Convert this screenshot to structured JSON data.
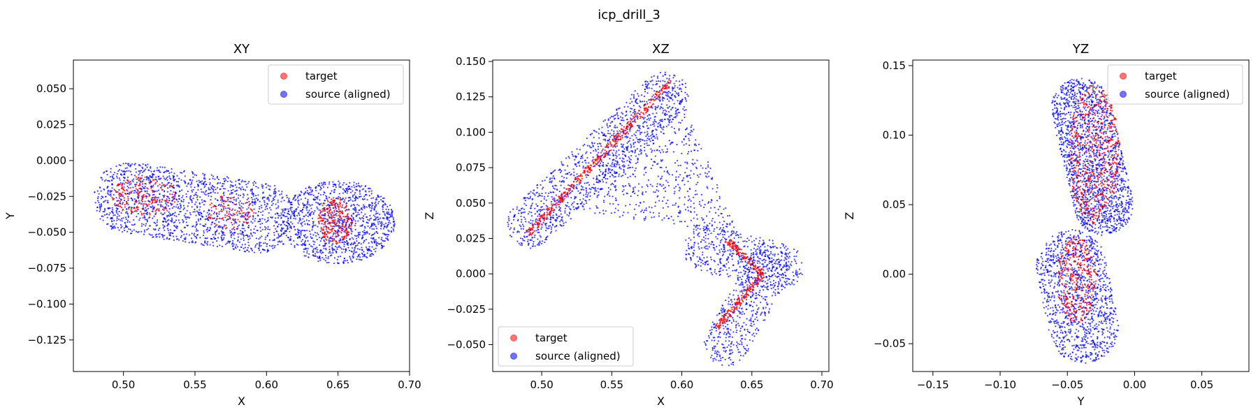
{
  "figure": {
    "title": "icp_drill_3"
  },
  "chart_data": [
    {
      "type": "scatter",
      "title": "XY",
      "xlabel": "X",
      "ylabel": "Y",
      "xlim": [
        0.465,
        0.7
      ],
      "ylim": [
        -0.147,
        0.07
      ],
      "x_ticks": [
        0.5,
        0.55,
        0.6,
        0.65,
        0.7
      ],
      "x_tick_labels": [
        "0.50",
        "0.55",
        "0.60",
        "0.65",
        "0.70"
      ],
      "y_ticks": [
        -0.125,
        -0.1,
        -0.075,
        -0.05,
        -0.025,
        0.0,
        0.025,
        0.05
      ],
      "y_tick_labels": [
        "−0.125",
        "−0.100",
        "−0.075",
        "−0.050",
        "−0.025",
        "0.000",
        "0.025",
        "0.050"
      ],
      "grid": false,
      "legend": {
        "placement": "top-right",
        "entries": [
          "target",
          "source (aligned)"
        ]
      },
      "series": [
        {
          "name": "target",
          "color": "#ff0000",
          "regions": [
            {
              "shape": "ellipse",
              "cx": 0.515,
              "cy": -0.025,
              "rx": 0.024,
              "ry": 0.014,
              "count": 180
            },
            {
              "shape": "ellipse",
              "cx": 0.575,
              "cy": -0.036,
              "rx": 0.018,
              "ry": 0.012,
              "count": 90
            },
            {
              "shape": "ellipse",
              "cx": 0.648,
              "cy": -0.042,
              "rx": 0.012,
              "ry": 0.016,
              "count": 220
            }
          ]
        },
        {
          "name": "source (aligned)",
          "color": "#0000ff",
          "regions": [
            {
              "shape": "capsule",
              "x1": 0.504,
              "y1": -0.026,
              "x2": 0.595,
              "y2": -0.04,
              "r": 0.025,
              "count": 1650
            },
            {
              "shape": "ellipse",
              "cx": 0.65,
              "cy": -0.043,
              "rx": 0.04,
              "ry": 0.029,
              "count": 1150
            }
          ]
        }
      ]
    },
    {
      "type": "scatter",
      "title": "XZ",
      "xlabel": "X",
      "ylabel": "Z",
      "xlim": [
        0.465,
        0.705
      ],
      "ylim": [
        -0.069,
        0.151
      ],
      "x_ticks": [
        0.5,
        0.55,
        0.6,
        0.65,
        0.7
      ],
      "x_tick_labels": [
        "0.50",
        "0.55",
        "0.60",
        "0.65",
        "0.70"
      ],
      "y_ticks": [
        -0.05,
        -0.025,
        0.0,
        0.025,
        0.05,
        0.075,
        0.1,
        0.125,
        0.15
      ],
      "y_tick_labels": [
        "−0.050",
        "−0.025",
        "0.000",
        "0.025",
        "0.050",
        "0.075",
        "0.100",
        "0.125",
        "0.150"
      ],
      "grid": false,
      "legend": {
        "placement": "lower-left",
        "entries": [
          "target",
          "source (aligned)"
        ]
      },
      "series": [
        {
          "name": "target",
          "color": "#ff0000",
          "regions": [
            {
              "shape": "line",
              "x1": 0.49,
              "y1": 0.028,
              "x2": 0.592,
              "y2": 0.136,
              "spread": 0.0025,
              "count": 420
            },
            {
              "shape": "line",
              "x1": 0.632,
              "y1": 0.024,
              "x2": 0.658,
              "y2": 0.0,
              "spread": 0.0022,
              "count": 120
            },
            {
              "shape": "line",
              "x1": 0.658,
              "y1": 0.0,
              "x2": 0.625,
              "y2": -0.038,
              "spread": 0.0022,
              "count": 160
            }
          ]
        },
        {
          "name": "source (aligned)",
          "color": "#0000ff",
          "regions": [
            {
              "shape": "capsule",
              "x1": 0.492,
              "y1": 0.035,
              "x2": 0.588,
              "y2": 0.126,
              "r": 0.017,
              "count": 1150
            },
            {
              "shape": "triangle",
              "points": [
                [
                  0.515,
                  0.046
                ],
                [
                  0.6,
                  0.124
                ],
                [
                  0.64,
                  0.028
                ]
              ],
              "count": 560
            },
            {
              "shape": "capsule",
              "x1": 0.618,
              "y1": 0.018,
              "x2": 0.67,
              "y2": 0.005,
              "r": 0.017,
              "count": 520
            },
            {
              "shape": "capsule",
              "x1": 0.662,
              "y1": 0.004,
              "x2": 0.632,
              "y2": -0.049,
              "r": 0.016,
              "count": 560
            }
          ]
        }
      ]
    },
    {
      "type": "scatter",
      "title": "YZ",
      "xlabel": "Y",
      "ylabel": "Z",
      "xlim": [
        -0.165,
        0.085
      ],
      "ylim": [
        -0.07,
        0.154
      ],
      "x_ticks": [
        -0.15,
        -0.1,
        -0.05,
        0.0,
        0.05
      ],
      "x_tick_labels": [
        "−0.15",
        "−0.10",
        "−0.05",
        "0.00",
        "0.05"
      ],
      "y_ticks": [
        -0.05,
        0.0,
        0.05,
        0.1,
        0.15
      ],
      "y_tick_labels": [
        "−0.05",
        "0.00",
        "0.05",
        "0.10",
        "0.15"
      ],
      "grid": false,
      "legend": {
        "placement": "top-right",
        "entries": [
          "target",
          "source (aligned)"
        ]
      },
      "series": [
        {
          "name": "target",
          "color": "#ff0000",
          "regions": [
            {
              "shape": "ellipse",
              "cx": -0.03,
              "cy": 0.086,
              "rx": 0.019,
              "ry": 0.05,
              "count": 520
            },
            {
              "shape": "ellipse",
              "cx": -0.043,
              "cy": -0.004,
              "rx": 0.015,
              "ry": 0.031,
              "count": 300
            }
          ]
        },
        {
          "name": "source (aligned)",
          "color": "#0000ff",
          "regions": [
            {
              "shape": "capsule",
              "x1": -0.04,
              "y1": 0.119,
              "x2": -0.023,
              "y2": 0.05,
              "r": 0.022,
              "count": 1700
            },
            {
              "shape": "capsule",
              "x1": -0.047,
              "y1": 0.006,
              "x2": -0.038,
              "y2": -0.038,
              "r": 0.026,
              "count": 1200
            }
          ]
        }
      ]
    }
  ]
}
